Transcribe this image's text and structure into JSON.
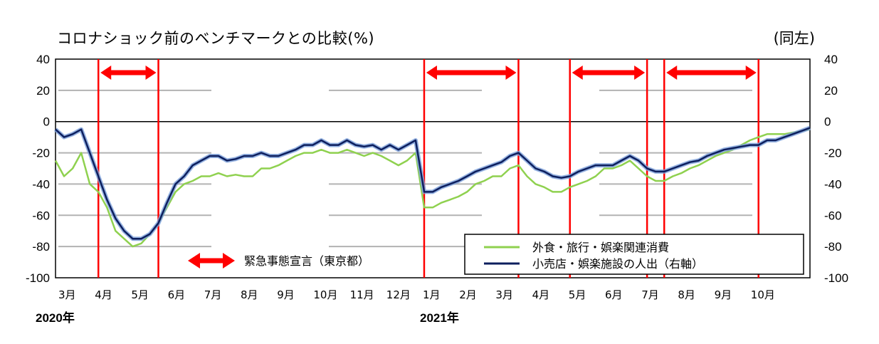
{
  "title": "コロナショック前のベンチマークとの比較(%)",
  "unit_note": "(同左)",
  "chart_data": {
    "type": "line",
    "title": "コロナショック前のベンチマークとの比較(%)",
    "ylim": [
      -100,
      40
    ],
    "yticks": [
      40,
      20,
      0,
      -20,
      -40,
      -60,
      -80,
      -100
    ],
    "x_months": [
      "3月",
      "4月",
      "5月",
      "6月",
      "7月",
      "8月",
      "9月",
      "10月",
      "11月",
      "12月",
      "1月",
      "2月",
      "3月",
      "4月",
      "5月",
      "6月",
      "7月",
      "8月",
      "9月",
      "10月"
    ],
    "year_labels": [
      "2020年",
      "2021年"
    ],
    "colors": {
      "food_travel": "#8fd14f",
      "retail": "#0d1f5e",
      "retail_smooth": "#7b9fd9",
      "emergency": "#ff0000",
      "grid": "#b3b3b3"
    },
    "series": [
      {
        "name": "外食・旅行・娯楽関連消費",
        "x_weeks": [
          0,
          1,
          2,
          3,
          4,
          5,
          6,
          7,
          8,
          9,
          10,
          11,
          12,
          13,
          14,
          15,
          16,
          17,
          18,
          19,
          20,
          21,
          22,
          23,
          24,
          25,
          26,
          27,
          28,
          29,
          30,
          31,
          32,
          33,
          34,
          35,
          36,
          37,
          38,
          39,
          40,
          41,
          42,
          43,
          44,
          45,
          46,
          47,
          48,
          49,
          50,
          51,
          52,
          53,
          54,
          55,
          56,
          57,
          58,
          59,
          60,
          61,
          62,
          63,
          64,
          65,
          66,
          67,
          68,
          69,
          70,
          71,
          72,
          73,
          74,
          75,
          76,
          77,
          78,
          79,
          80,
          81,
          82,
          83,
          84,
          85,
          86,
          87,
          88
        ],
        "values": [
          -25,
          -35,
          -30,
          -20,
          -40,
          -45,
          -55,
          -70,
          -75,
          -80,
          -78,
          -72,
          -65,
          -55,
          -45,
          -40,
          -38,
          -35,
          -35,
          -33,
          -35,
          -34,
          -35,
          -35,
          -30,
          -30,
          -28,
          -25,
          -22,
          -20,
          -20,
          -18,
          -20,
          -20,
          -18,
          -20,
          -22,
          -20,
          -22,
          -25,
          -28,
          -25,
          -20,
          -55,
          -55,
          -52,
          -50,
          -48,
          -45,
          -40,
          -38,
          -35,
          -35,
          -30,
          -28,
          -35,
          -40,
          -42,
          -45,
          -45,
          -42,
          -40,
          -38,
          -35,
          -30,
          -30,
          -28,
          -25,
          -30,
          -35,
          -38,
          -38,
          -35,
          -33,
          -30,
          -28,
          -25,
          -22,
          -20,
          -18,
          -15,
          -12,
          -10,
          -8,
          -8,
          -8,
          -7,
          -6,
          -5
        ]
      },
      {
        "name": "小売店・娯楽施設の人出（右軸）",
        "x_weeks": [
          0,
          1,
          2,
          3,
          4,
          5,
          6,
          7,
          8,
          9,
          10,
          11,
          12,
          13,
          14,
          15,
          16,
          17,
          18,
          19,
          20,
          21,
          22,
          23,
          24,
          25,
          26,
          27,
          28,
          29,
          30,
          31,
          32,
          33,
          34,
          35,
          36,
          37,
          38,
          39,
          40,
          41,
          42,
          43,
          44,
          45,
          46,
          47,
          48,
          49,
          50,
          51,
          52,
          53,
          54,
          55,
          56,
          57,
          58,
          59,
          60,
          61,
          62,
          63,
          64,
          65,
          66,
          67,
          68,
          69,
          70,
          71,
          72,
          73,
          74,
          75,
          76,
          77,
          78,
          79,
          80,
          81,
          82,
          83,
          84,
          85,
          86,
          87,
          88
        ],
        "values": [
          -5,
          -10,
          -8,
          -5,
          -20,
          -35,
          -50,
          -62,
          -70,
          -75,
          -75,
          -72,
          -65,
          -52,
          -40,
          -35,
          -28,
          -25,
          -22,
          -22,
          -25,
          -24,
          -22,
          -22,
          -20,
          -22,
          -22,
          -20,
          -18,
          -15,
          -15,
          -12,
          -15,
          -15,
          -12,
          -15,
          -16,
          -15,
          -18,
          -15,
          -18,
          -15,
          -12,
          -45,
          -45,
          -42,
          -40,
          -38,
          -35,
          -32,
          -30,
          -28,
          -26,
          -22,
          -20,
          -25,
          -30,
          -32,
          -35,
          -36,
          -35,
          -32,
          -30,
          -28,
          -28,
          -28,
          -25,
          -22,
          -25,
          -30,
          -32,
          -32,
          -30,
          -28,
          -26,
          -25,
          -22,
          -20,
          -18,
          -17,
          -16,
          -15,
          -15,
          -12,
          -12,
          -10,
          -8,
          -6,
          -4
        ]
      }
    ],
    "emergency_legend": "緊急事態宣言（東京都）",
    "emergency_periods": [
      [
        5,
        12
      ],
      [
        43,
        54
      ],
      [
        60,
        69
      ],
      [
        71,
        82
      ]
    ]
  }
}
